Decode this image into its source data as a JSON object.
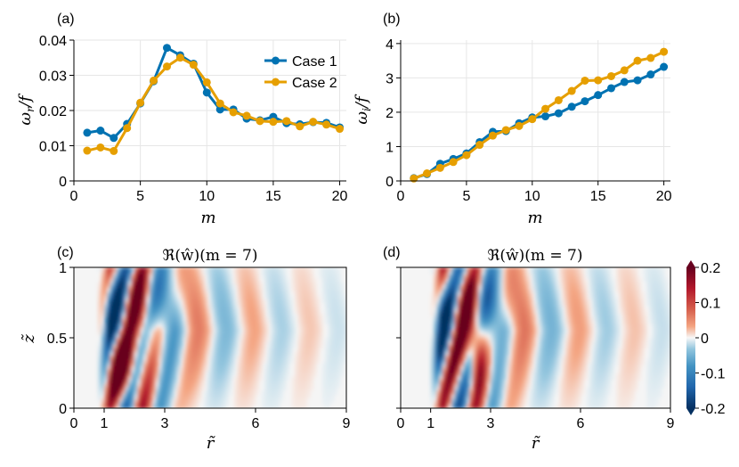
{
  "chart_data": [
    {
      "id": "a",
      "type": "line",
      "panel_label": "(a)",
      "xlabel": "m",
      "ylabel": "ω_r / f",
      "xlim": [
        0,
        20.5
      ],
      "ylim": [
        0,
        0.04
      ],
      "xticks": [
        0,
        5,
        10,
        15,
        20
      ],
      "xtick_labels": [
        "0",
        "5",
        "10",
        "15",
        "20"
      ],
      "yticks": [
        0,
        0.01,
        0.02,
        0.03,
        0.04
      ],
      "ytick_labels": [
        "0",
        "0.01",
        "0.02",
        "0.03",
        "0.04"
      ],
      "legend": "top-right",
      "x": [
        1,
        2,
        3,
        4,
        5,
        6,
        7,
        8,
        9,
        10,
        11,
        12,
        13,
        14,
        15,
        16,
        17,
        18,
        19,
        20
      ],
      "series": [
        {
          "name": "Case 1",
          "color": "#0072b2",
          "values": [
            0.0137,
            0.0143,
            0.0122,
            0.0162,
            0.022,
            0.0283,
            0.0378,
            0.0357,
            0.0333,
            0.0251,
            0.0203,
            0.0203,
            0.0177,
            0.0172,
            0.0182,
            0.0164,
            0.0161,
            0.0167,
            0.0165,
            0.0152
          ]
        },
        {
          "name": "Case 2",
          "color": "#e69f00",
          "values": [
            0.0086,
            0.0095,
            0.0085,
            0.015,
            0.0222,
            0.0285,
            0.0325,
            0.035,
            0.033,
            0.028,
            0.022,
            0.0195,
            0.0185,
            0.017,
            0.0168,
            0.017,
            0.0155,
            0.0168,
            0.016,
            0.0148
          ]
        }
      ]
    },
    {
      "id": "b",
      "type": "line",
      "panel_label": "(b)",
      "xlabel": "m",
      "ylabel": "ω_i / f",
      "xlim": [
        0,
        20.5
      ],
      "ylim": [
        0,
        4.1
      ],
      "xticks": [
        0,
        5,
        10,
        15,
        20
      ],
      "xtick_labels": [
        "0",
        "5",
        "10",
        "15",
        "20"
      ],
      "yticks": [
        0,
        1,
        2,
        3,
        4
      ],
      "ytick_labels": [
        "0",
        "1",
        "2",
        "3",
        "4"
      ],
      "x": [
        1,
        2,
        3,
        4,
        5,
        6,
        7,
        8,
        9,
        10,
        11,
        12,
        13,
        14,
        15,
        16,
        17,
        18,
        19,
        20
      ],
      "series": [
        {
          "name": "Case 1",
          "color": "#0072b2",
          "values": [
            0.08,
            0.2,
            0.5,
            0.64,
            0.8,
            1.13,
            1.43,
            1.45,
            1.68,
            1.85,
            1.88,
            1.97,
            2.16,
            2.32,
            2.5,
            2.7,
            2.88,
            2.93,
            3.1,
            3.32
          ]
        },
        {
          "name": "Case 2",
          "color": "#e69f00",
          "values": [
            0.07,
            0.22,
            0.38,
            0.55,
            0.75,
            1.05,
            1.32,
            1.48,
            1.6,
            1.8,
            2.1,
            2.35,
            2.62,
            2.92,
            2.93,
            3.05,
            3.22,
            3.5,
            3.58,
            3.76
          ]
        }
      ]
    },
    {
      "id": "c",
      "type": "heatmap",
      "panel_label": "(c)",
      "title": "ℜ(ŵ)(m = 7)",
      "xlabel": "r̃",
      "ylabel": "z̃",
      "xlim": [
        0,
        9
      ],
      "ylim": [
        0,
        1
      ],
      "xticks": [
        0,
        1,
        3,
        6,
        9
      ],
      "xtick_labels": [
        "0",
        "1",
        "3",
        "6",
        "9"
      ],
      "yticks": [
        0,
        0.5,
        1
      ],
      "ytick_labels": [
        "0",
        "0.5",
        "1"
      ]
    },
    {
      "id": "d",
      "type": "heatmap",
      "panel_label": "(d)",
      "title": "ℜ(ŵ)(m = 7)",
      "xlabel": "r̃",
      "xlim": [
        0,
        9
      ],
      "ylim": [
        0,
        1
      ],
      "xticks": [
        0,
        1,
        3,
        6,
        9
      ],
      "xtick_labels": [
        "0",
        "1",
        "3",
        "6",
        "9"
      ],
      "colorbar": {
        "range": [
          -0.2,
          0.2
        ],
        "ticks": [
          0.2,
          0.1,
          0,
          -0.1,
          -0.2
        ],
        "tick_labels": [
          "0.2",
          "0.1",
          "0",
          "-0.1",
          "-0.2"
        ],
        "colormap": "RdBu (blue negative, red positive)"
      }
    }
  ]
}
